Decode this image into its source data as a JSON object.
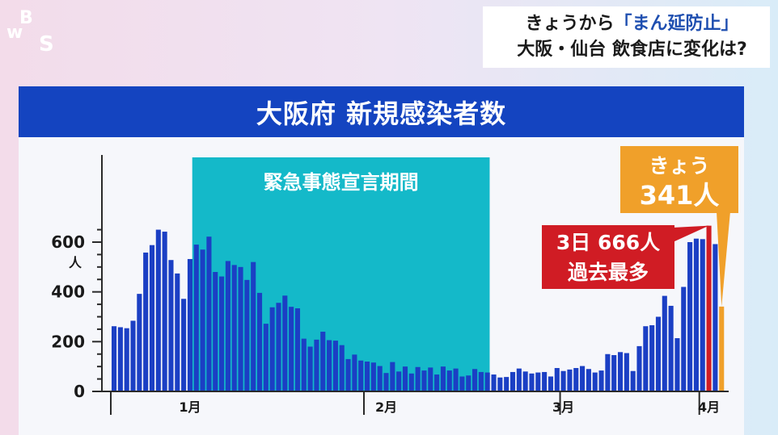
{
  "logo": {
    "text": "WBS"
  },
  "headline": {
    "line1_prefix": "きょうから",
    "line1_highlight": "「まん延防止」",
    "line2": "大阪・仙台 飲食店に変化は?"
  },
  "colors": {
    "bar": "#1b3fc4",
    "emergency_band": "#14b9c9",
    "record_bar": "#d01c24",
    "today_bar": "#f0a02a",
    "title_bar": "#1444c0"
  },
  "chart_data": {
    "type": "bar",
    "title": "大阪府 新規感染者数",
    "ylabel": "人",
    "ylim": [
      0,
      700
    ],
    "yticks": [
      0,
      200,
      400,
      600
    ],
    "values": [
      262,
      258,
      254,
      284,
      392,
      558,
      588,
      650,
      642,
      528,
      474,
      372,
      532,
      590,
      570,
      622,
      480,
      462,
      524,
      508,
      500,
      448,
      520,
      396,
      272,
      338,
      356,
      385,
      340,
      334,
      212,
      180,
      208,
      240,
      206,
      204,
      186,
      130,
      148,
      124,
      120,
      116,
      102,
      74,
      118,
      80,
      100,
      72,
      98,
      84,
      96,
      68,
      100,
      84,
      92,
      60,
      64,
      90,
      78,
      76,
      68,
      56,
      58,
      78,
      92,
      80,
      72,
      76,
      78,
      60,
      94,
      82,
      88,
      94,
      102,
      90,
      76,
      84,
      150,
      146,
      158,
      154,
      82,
      182,
      262,
      266,
      300,
      384,
      344,
      214,
      420,
      600,
      614,
      612,
      666,
      592,
      341
    ],
    "month_labels": [
      {
        "label": "1月",
        "index": 12
      },
      {
        "label": "2月",
        "index": 43
      },
      {
        "label": "3月",
        "index": 71
      },
      {
        "label": "4月",
        "index": 94
      }
    ],
    "emergency_period": {
      "label": "緊急事態宣言期間",
      "start_index": 13,
      "end_index": 59
    },
    "record": {
      "index": 94,
      "value": 666,
      "label_line1": "3日 666人",
      "label_line2": "過去最多"
    },
    "today": {
      "index": 96,
      "value": 341,
      "label_line1": "きょう",
      "label_line2": "341人"
    }
  }
}
